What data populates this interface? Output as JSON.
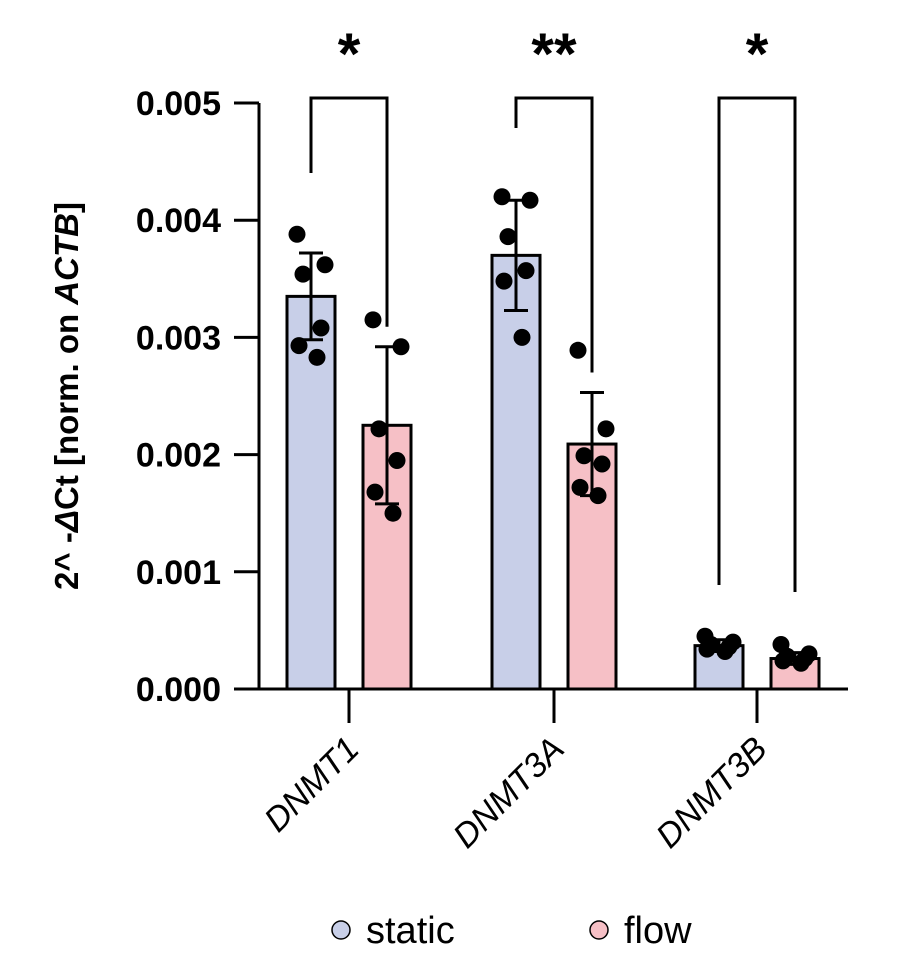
{
  "chart_data": {
    "type": "bar",
    "categories": [
      "DNMT1",
      "DNMT3A",
      "DNMT3B"
    ],
    "ylabel": {
      "prefix": "2^ -",
      "delta": "Δ",
      "ct": "Ct [norm. on ",
      "gene": "ACTB",
      "suffix": "]"
    },
    "ylim": [
      0,
      0.005
    ],
    "yticks": [
      0.0,
      0.001,
      0.002,
      0.003,
      0.004,
      0.005
    ],
    "ytick_labels": [
      "0.000",
      "0.001",
      "0.002",
      "0.003",
      "0.004",
      "0.005"
    ],
    "series": [
      {
        "name": "static",
        "color": "#c8cfe8",
        "values": [
          0.00335,
          0.0037,
          0.00037
        ],
        "sd": [
          0.00037,
          0.00047,
          5e-05
        ],
        "points": [
          [
            0.00388,
            0.00362,
            0.00354,
            0.00308,
            0.00293,
            0.00283
          ],
          [
            0.0042,
            0.00417,
            0.00386,
            0.00357,
            0.00348,
            0.003
          ],
          [
            0.00045,
            0.0004,
            0.00038,
            0.00036,
            0.00034,
            0.00032
          ]
        ]
      },
      {
        "name": "flow",
        "color": "#f6c0c6",
        "values": [
          0.00225,
          0.00209,
          0.00026
        ],
        "sd": [
          0.00067,
          0.00044,
          5e-05
        ],
        "points": [
          [
            0.00315,
            0.00292,
            0.00222,
            0.00195,
            0.00168,
            0.0015
          ],
          [
            0.00289,
            0.00222,
            0.00199,
            0.00192,
            0.00172,
            0.00165
          ],
          [
            0.00038,
            0.0003,
            0.00028,
            0.00026,
            0.00024,
            0.00022
          ]
        ]
      }
    ],
    "significance": [
      "*",
      "**",
      "*"
    ],
    "legend": {
      "position": "bottom",
      "items": [
        {
          "label": "static",
          "color": "#c8cfe8"
        },
        {
          "label": "flow",
          "color": "#f6c0c6"
        }
      ]
    }
  }
}
